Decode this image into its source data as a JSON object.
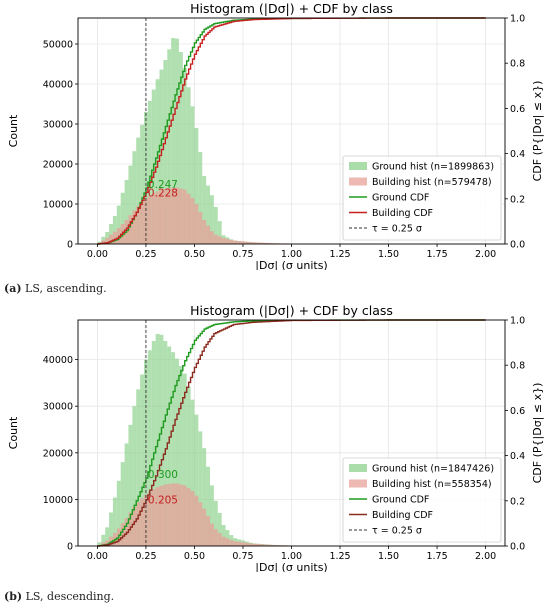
{
  "chart_data": [
    {
      "type": "histogram+line",
      "title": "Histogram (|Dσ|) + CDF by class",
      "xlabel": "|Dσ| (σ units)",
      "ylabel": "Count",
      "y2label": "CDF  (P{|Dσ| ≤ x})",
      "xlim": [
        -0.1,
        2.1
      ],
      "ylim": [
        0,
        56500
      ],
      "y2lim": [
        0,
        1.0
      ],
      "xticks": [
        "0.00",
        "0.25",
        "0.50",
        "0.75",
        "1.00",
        "1.25",
        "1.50",
        "1.75",
        "2.00"
      ],
      "yticks": [
        "0",
        "10000",
        "20000",
        "30000",
        "40000",
        "50000"
      ],
      "y2ticks": [
        "0.0",
        "0.2",
        "0.4",
        "0.6",
        "0.8",
        "1.0"
      ],
      "grid": true,
      "legend": "lower-right",
      "threshold": {
        "x": 0.25,
        "label": "τ = 0.25 σ"
      },
      "series": [
        {
          "name": "Ground hist (n=1899863)",
          "kind": "hist",
          "color": "#8fd18f",
          "x": [
            0.0,
            0.05,
            0.1,
            0.15,
            0.2,
            0.25,
            0.3,
            0.35,
            0.38,
            0.4,
            0.43,
            0.45,
            0.5,
            0.55,
            0.6,
            0.65,
            0.7,
            0.8,
            0.9,
            1.0,
            1.2,
            1.5,
            2.0
          ],
          "values": [
            0,
            3000,
            8000,
            16000,
            25000,
            33000,
            40000,
            46000,
            50000,
            53000,
            48000,
            44000,
            32000,
            17000,
            11000,
            2200,
            900,
            400,
            150,
            60,
            20,
            5,
            0
          ]
        },
        {
          "name": "Building hist (n=579478)",
          "kind": "hist",
          "color": "#e8a09a",
          "x": [
            0.0,
            0.05,
            0.1,
            0.15,
            0.2,
            0.25,
            0.3,
            0.35,
            0.4,
            0.45,
            0.5,
            0.55,
            0.6,
            0.65,
            0.7,
            0.8,
            0.9,
            1.0,
            1.2,
            1.5,
            2.0
          ],
          "values": [
            0,
            1500,
            3500,
            6000,
            9000,
            11500,
            13000,
            13800,
            14200,
            13600,
            11000,
            6000,
            2500,
            1500,
            900,
            450,
            220,
            110,
            40,
            10,
            0
          ]
        },
        {
          "name": "Ground CDF",
          "kind": "cdf",
          "color": "#1f9b1f",
          "x": [
            0.0,
            0.05,
            0.1,
            0.15,
            0.2,
            0.25,
            0.3,
            0.35,
            0.4,
            0.45,
            0.5,
            0.55,
            0.6,
            0.7,
            0.8,
            1.0,
            1.5,
            2.0
          ],
          "values": [
            0,
            0.005,
            0.02,
            0.06,
            0.14,
            0.247,
            0.38,
            0.52,
            0.66,
            0.79,
            0.89,
            0.95,
            0.975,
            0.99,
            0.995,
            0.998,
            1.0,
            1.0
          ]
        },
        {
          "name": "Building CDF",
          "kind": "cdf",
          "color": "#c62020",
          "x": [
            0.0,
            0.05,
            0.1,
            0.15,
            0.2,
            0.25,
            0.3,
            0.35,
            0.4,
            0.45,
            0.5,
            0.55,
            0.6,
            0.7,
            0.8,
            1.0,
            1.5,
            2.0
          ],
          "values": [
            0,
            0.006,
            0.025,
            0.07,
            0.14,
            0.228,
            0.34,
            0.47,
            0.6,
            0.73,
            0.84,
            0.92,
            0.96,
            0.985,
            0.993,
            0.998,
            1.0,
            1.0
          ]
        }
      ],
      "annotations": [
        {
          "text": "0.247",
          "x": 0.25,
          "y2": 0.247,
          "color": "#1f9b1f"
        },
        {
          "text": "0.228",
          "x": 0.25,
          "y2": 0.228,
          "color": "#c62020"
        }
      ]
    },
    {
      "type": "histogram+line",
      "title": "Histogram (|Dσ|) + CDF by class",
      "xlabel": "|Dσ| (σ units)",
      "ylabel": "Count",
      "y2label": "CDF  (P{|Dσ| ≤ x})",
      "xlim": [
        -0.1,
        2.1
      ],
      "ylim": [
        0,
        48500
      ],
      "y2lim": [
        0,
        1.0
      ],
      "xticks": [
        "0.00",
        "0.25",
        "0.50",
        "0.75",
        "1.00",
        "1.25",
        "1.50",
        "1.75",
        "2.00"
      ],
      "yticks": [
        "0",
        "10000",
        "20000",
        "30000",
        "40000"
      ],
      "y2ticks": [
        "0.0",
        "0.2",
        "0.4",
        "0.6",
        "0.8",
        "1.0"
      ],
      "grid": true,
      "legend": "lower-right",
      "threshold": {
        "x": 0.25,
        "label": "τ = 0.25 σ"
      },
      "series": [
        {
          "name": "Ground hist (n=1847426)",
          "kind": "hist",
          "color": "#8fd18f",
          "x": [
            0.0,
            0.05,
            0.1,
            0.15,
            0.2,
            0.25,
            0.3,
            0.32,
            0.35,
            0.4,
            0.45,
            0.5,
            0.55,
            0.6,
            0.65,
            0.7,
            0.8,
            0.9,
            1.0,
            1.2,
            1.5,
            2.0
          ],
          "values": [
            0,
            4000,
            12000,
            22000,
            32000,
            40000,
            45000,
            46000,
            44000,
            41000,
            37000,
            30000,
            21000,
            11000,
            4500,
            1800,
            600,
            250,
            90,
            25,
            5,
            0
          ]
        },
        {
          "name": "Building hist (n=558354)",
          "kind": "hist",
          "color": "#e8a09a",
          "x": [
            0.0,
            0.05,
            0.1,
            0.15,
            0.2,
            0.25,
            0.3,
            0.35,
            0.4,
            0.45,
            0.5,
            0.55,
            0.6,
            0.65,
            0.7,
            0.8,
            0.9,
            1.0,
            1.2,
            1.5,
            2.0
          ],
          "values": [
            0,
            1200,
            3200,
            6000,
            9000,
            11000,
            12500,
            13200,
            13500,
            13000,
            11500,
            8000,
            4000,
            2000,
            1100,
            500,
            230,
            110,
            40,
            10,
            0
          ]
        },
        {
          "name": "Ground CDF",
          "kind": "cdf",
          "color": "#1f9b1f",
          "x": [
            0.0,
            0.05,
            0.1,
            0.15,
            0.2,
            0.25,
            0.3,
            0.35,
            0.4,
            0.45,
            0.5,
            0.55,
            0.6,
            0.7,
            0.8,
            1.0,
            1.5,
            2.0
          ],
          "values": [
            0,
            0.008,
            0.035,
            0.1,
            0.2,
            0.3,
            0.44,
            0.58,
            0.71,
            0.82,
            0.91,
            0.96,
            0.98,
            0.992,
            0.996,
            0.999,
            1.0,
            1.0
          ]
        },
        {
          "name": "Building CDF",
          "kind": "cdf",
          "color": "#8b2a1e",
          "x": [
            0.0,
            0.05,
            0.1,
            0.15,
            0.2,
            0.25,
            0.3,
            0.35,
            0.4,
            0.45,
            0.5,
            0.55,
            0.6,
            0.7,
            0.8,
            1.0,
            1.5,
            2.0
          ],
          "values": [
            0,
            0.005,
            0.02,
            0.06,
            0.12,
            0.205,
            0.31,
            0.43,
            0.56,
            0.68,
            0.79,
            0.88,
            0.94,
            0.98,
            0.99,
            0.998,
            1.0,
            1.0
          ]
        }
      ],
      "annotations": [
        {
          "text": "0.300",
          "x": 0.25,
          "y2": 0.3,
          "color": "#1f9b1f"
        },
        {
          "text": "0.205",
          "x": 0.25,
          "y2": 0.205,
          "color": "#c62020"
        }
      ]
    }
  ],
  "captions": [
    {
      "label": "(a)",
      "text": " LS, ascending."
    },
    {
      "label": "(b)",
      "text": " LS, descending."
    }
  ]
}
